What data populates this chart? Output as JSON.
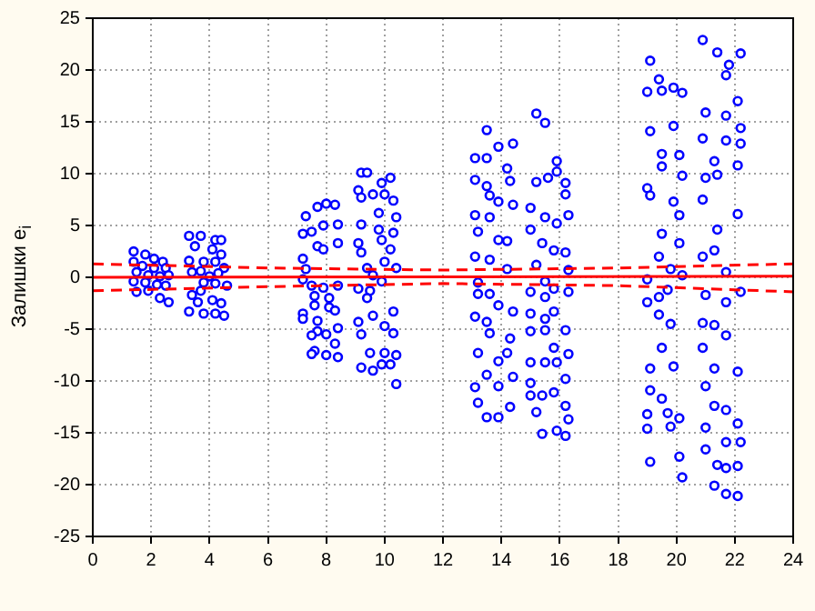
{
  "chart_data": {
    "type": "scatter",
    "ylabel": "Залишки e$_{i}$",
    "xlim": [
      0,
      24
    ],
    "ylim": [
      -25,
      25
    ],
    "xticks": [
      0,
      2,
      4,
      6,
      8,
      10,
      12,
      14,
      16,
      18,
      20,
      22,
      24
    ],
    "yticks": [
      -25,
      -20,
      -15,
      -10,
      -5,
      0,
      5,
      10,
      15,
      20,
      25
    ],
    "grid": true,
    "marker": "circle",
    "series": [
      {
        "type": "scatter",
        "color": "#0000ff",
        "x": [
          1.4,
          1.8,
          2.1,
          2.4,
          1.4,
          1.7,
          2.1,
          2.5,
          1.5,
          1.9,
          2.3,
          2.6,
          1.4,
          1.8,
          2.2,
          2.5,
          1.5,
          1.9,
          2.3,
          2.6,
          3.3,
          3.7,
          4.2,
          4.4,
          3.5,
          4.1,
          4.4,
          3.3,
          3.8,
          4.2,
          4.5,
          3.4,
          3.7,
          4.0,
          4.3,
          3.8,
          4.2,
          4.6,
          3.4,
          3.7,
          4.1,
          3.6,
          4.4,
          3.3,
          3.8,
          4.2,
          4.5,
          7.3,
          7.7,
          8.0,
          8.3,
          7.5,
          7.9,
          8.4,
          7.2,
          8.4,
          7.7,
          7.9,
          7.2,
          7.3,
          7.2,
          7.5,
          7.9,
          8.4,
          7.6,
          8.1,
          7.6,
          8.1,
          7.2,
          8.3,
          7.2,
          7.7,
          8.4,
          7.7,
          8.0,
          7.5,
          8.3,
          7.6,
          8.0,
          8.4,
          7.5,
          9.2,
          9.4,
          9.9,
          10.2,
          9.1,
          9.6,
          10.0,
          10.3,
          9.2,
          9.8,
          10.4,
          9.2,
          9.8,
          10.3,
          9.1,
          9.9,
          10.2,
          9.2,
          10.0,
          10.4,
          9.4,
          9.6,
          9.9,
          9.1,
          9.5,
          9.4,
          10.3,
          9.6,
          9.1,
          10.0,
          9.2,
          10.3,
          9.5,
          10.0,
          10.4,
          9.2,
          9.6,
          9.9,
          10.2,
          10.4,
          13.5,
          14.4,
          13.9,
          13.1,
          13.5,
          14.2,
          13.1,
          13.5,
          14.3,
          13.6,
          13.9,
          14.4,
          13.1,
          13.6,
          13.2,
          13.9,
          14.2,
          13.1,
          13.6,
          14.2,
          13.2,
          13.2,
          13.6,
          13.9,
          13.1,
          13.5,
          14.4,
          13.6,
          14.3,
          13.2,
          13.9,
          14.2,
          13.5,
          14.4,
          13.1,
          13.9,
          13.2,
          14.3,
          13.5,
          13.9,
          15.2,
          15.5,
          15.9,
          15.2,
          15.6,
          15.9,
          16.2,
          16.2,
          15.0,
          15.5,
          15.9,
          16.3,
          15.0,
          15.4,
          15.8,
          16.2,
          15.2,
          15.5,
          16.3,
          15.0,
          15.8,
          15.5,
          16.3,
          15.0,
          15.5,
          15.8,
          15.0,
          15.5,
          16.2,
          15.8,
          16.3,
          15.0,
          15.5,
          15.9,
          15.0,
          16.2,
          15.8,
          15.0,
          15.4,
          16.2,
          15.2,
          16.3,
          15.4,
          15.9,
          16.2,
          19.1,
          19.4,
          19.0,
          19.5,
          19.9,
          20.2,
          19.1,
          19.9,
          19.5,
          19.5,
          19.0,
          19.1,
          19.9,
          20.1,
          19.5,
          20.1,
          19.4,
          19.8,
          19.0,
          20.2,
          19.4,
          19.0,
          19.7,
          19.4,
          19.8,
          19.5,
          19.1,
          19.9,
          19.1,
          19.5,
          19.0,
          19.7,
          20.1,
          19.0,
          19.8,
          19.1,
          20.1,
          20.2,
          20.1,
          20.2,
          20.9,
          21.4,
          21.8,
          22.2,
          21.7,
          21.0,
          21.7,
          22.1,
          22.2,
          20.9,
          21.3,
          21.7,
          22.2,
          22.1,
          21.0,
          21.4,
          20.9,
          22.1,
          21.4,
          21.3,
          20.9,
          21.7,
          22.2,
          21.7,
          21.0,
          20.9,
          21.3,
          21.7,
          20.9,
          21.3,
          22.1,
          21.0,
          21.3,
          21.7,
          22.1,
          21.0,
          21.7,
          22.2,
          21.0,
          21.4,
          21.7,
          22.1,
          21.3,
          21.7,
          22.1
        ],
        "values": [
          2.5,
          2.2,
          1.8,
          1.5,
          1.5,
          1.1,
          0.9,
          0.9,
          0.5,
          0.2,
          0.1,
          0.2,
          -0.4,
          -0.5,
          -0.7,
          -0.8,
          -1.4,
          -1.3,
          -2,
          -2.4,
          4,
          4,
          3.6,
          3.6,
          3,
          2.7,
          2.2,
          1.6,
          1.5,
          1.5,
          0.9,
          0.5,
          0.6,
          0.1,
          0.4,
          -0.5,
          -0.6,
          -0.8,
          -1.7,
          -1.3,
          -2.2,
          -2.4,
          -2.5,
          -3.3,
          -3.5,
          -3.5,
          -3.7,
          5.9,
          6.8,
          7.1,
          7,
          4.4,
          5,
          5.1,
          4.2,
          3.3,
          3,
          2.7,
          1.8,
          0.8,
          -0.2,
          -0.8,
          -1,
          -0.8,
          -1.8,
          -2,
          -2.7,
          -2.9,
          -3.5,
          -3.2,
          -4,
          -4.2,
          -4.9,
          -5.2,
          -5.5,
          -5.6,
          -6.4,
          -7.1,
          -7.5,
          -7.7,
          -7.4,
          10.1,
          10.1,
          9.1,
          9.6,
          8.4,
          8,
          8,
          7.4,
          7.7,
          6.2,
          5.8,
          5.1,
          4.6,
          4.3,
          3.3,
          3.6,
          2.7,
          2.4,
          1.5,
          0.9,
          0.9,
          0.2,
          -0.4,
          -1.1,
          -1.3,
          -2,
          -3.3,
          -3.7,
          -4.3,
          -4.7,
          -5.5,
          -5.4,
          -7.3,
          -7.3,
          -7.5,
          -8.7,
          -9,
          -8.4,
          -8.4,
          -10.3,
          14.2,
          12.9,
          12.6,
          11.5,
          11.5,
          10.5,
          9.4,
          8.8,
          9.3,
          7.9,
          7.3,
          7,
          6,
          5.8,
          4.4,
          3.6,
          3.5,
          2,
          1.7,
          0.8,
          -0.5,
          -1.6,
          -1.6,
          -2.7,
          -3.8,
          -4.3,
          -3.3,
          -5.4,
          -5.9,
          -7.3,
          -8.1,
          -7.3,
          -9.4,
          -9.6,
          -10.6,
          -10.5,
          -12.1,
          -12.5,
          -13.5,
          -13.5,
          15.8,
          14.9,
          11.2,
          9.2,
          9.6,
          10.2,
          9.1,
          8,
          6.7,
          5.8,
          5.2,
          6,
          4.6,
          3.3,
          2.6,
          2.4,
          1.2,
          -0.4,
          0.7,
          -1.4,
          -1.1,
          -1.9,
          -1.4,
          -3.5,
          -4,
          -3.3,
          -5.2,
          -5.1,
          -5.1,
          -6.8,
          -7.4,
          -8.2,
          -8.2,
          -8.2,
          -10.2,
          -9.8,
          -11.1,
          -11.4,
          -11.4,
          -12.4,
          -13,
          -13.7,
          -15.1,
          -14.8,
          -15.3,
          20.9,
          19.1,
          17.9,
          18,
          18.3,
          17.8,
          14.1,
          14.6,
          11.9,
          10.7,
          8.6,
          7.9,
          7.3,
          6,
          4.2,
          3.3,
          2,
          0.8,
          -0.2,
          0.2,
          -1.9,
          -2.4,
          -1.2,
          -3.6,
          -4.5,
          -6.8,
          -8.8,
          -8.6,
          -10.9,
          -11.7,
          -13.2,
          -13.1,
          -13.6,
          -14.6,
          -14.4,
          -17.8,
          -17.3,
          -19.3,
          11.8,
          9.8,
          22.9,
          21.7,
          20.5,
          21.6,
          19.5,
          15.9,
          15.6,
          17,
          14.4,
          13.4,
          11.2,
          13.2,
          12.9,
          10.8,
          9.6,
          9.9,
          7.5,
          6.1,
          4.6,
          2.6,
          2,
          0.5,
          -1.4,
          -2.4,
          -1.7,
          -4.4,
          -4.6,
          -5.6,
          -6.8,
          -8.8,
          -9.1,
          -10.5,
          -12.4,
          -12.8,
          -14.1,
          -14.5,
          -15.9,
          -15.9,
          -16.6,
          -18.1,
          -18.4,
          -18.2,
          -20.1,
          -20.9,
          -21.1
        ]
      },
      {
        "type": "line",
        "color": "#ff0000",
        "line_style": "solid",
        "marker": "none",
        "x": [
          0,
          24
        ],
        "values": [
          0,
          0.1
        ]
      },
      {
        "type": "line",
        "color": "#ff0000",
        "line_style": "dashed",
        "marker": "none",
        "x": [
          0,
          6,
          12,
          18,
          24
        ],
        "values": [
          1.3,
          0.9,
          0.7,
          0.9,
          1.3
        ]
      },
      {
        "type": "line",
        "color": "#ff0000",
        "line_style": "dashed",
        "marker": "none",
        "x": [
          0,
          6,
          12,
          18,
          24
        ],
        "values": [
          -1.3,
          -0.9,
          -0.6,
          -0.8,
          -1.4
        ]
      }
    ]
  }
}
